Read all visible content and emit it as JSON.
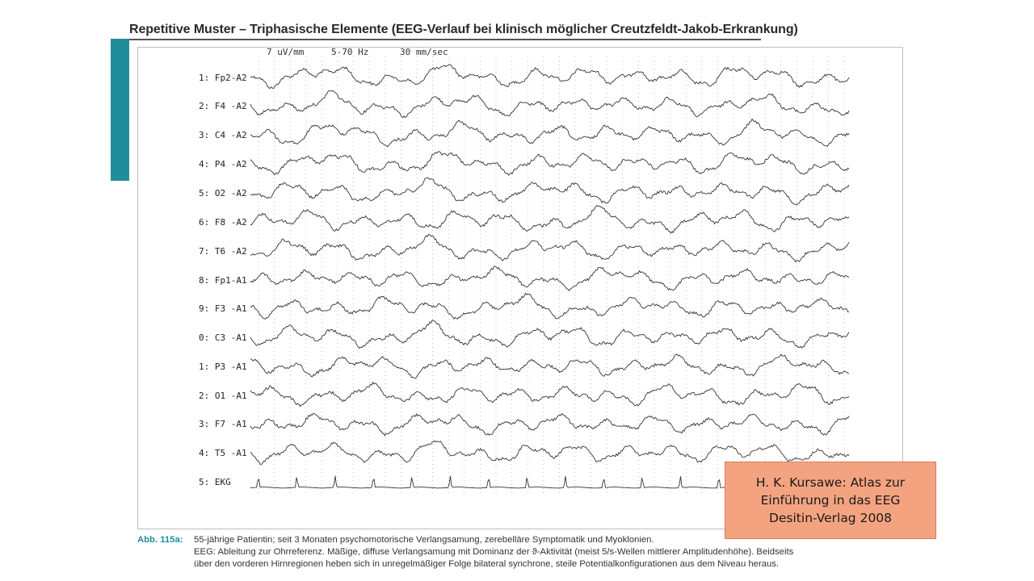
{
  "title": "Repetitive Muster – Triphasische Elemente (EEG-Verlauf bei klinisch möglicher Creutzfeldt-Jakob-Erkrankung)",
  "recording": {
    "sensitivity": "7 uV/mm",
    "filter": "5-70 Hz",
    "paper_speed": "30 mm/sec"
  },
  "channels": [
    "1: Fp2-A2",
    "2: F4 -A2",
    "3: C4 -A2",
    "4: P4 -A2",
    "5: O2 -A2",
    "6: F8 -A2",
    "7: T6 -A2",
    "8: Fp1-A1",
    "9: F3 -A1",
    "0: C3 -A1",
    "1: P3 -A1",
    "2: O1 -A1",
    "3: F7 -A1",
    "4: T5 -A1",
    "5: EKG"
  ],
  "caption": {
    "label": "Abb. 115a:",
    "line1": "55-jährige Patientin; seit 3 Monaten psychomotorische Verlangsamung, zerebelläre Symptomatik und Myoklonien.",
    "line2": "EEG: Ableitung zur Ohrreferenz. Mäßige, diffuse Verlangsamung mit Dominanz der ϑ-Aktivität (meist 5/s-Wellen mittlerer Amplitudenhöhe). Beidseits",
    "line3": "über den vorderen Hirnregionen heben sich in unregelmäßiger Folge bilateral synchrone, steile Potentialkonfigurationen aus dem Niveau heraus."
  },
  "citation": {
    "line1": "H. K. Kursawe: Atlas zur",
    "line2": "Einführung in das EEG",
    "line3": "Desitin-Verlag 2008"
  },
  "colors": {
    "accent": "#1f8e9a",
    "citation_bg": "#f4a381",
    "trace": "#333333"
  }
}
